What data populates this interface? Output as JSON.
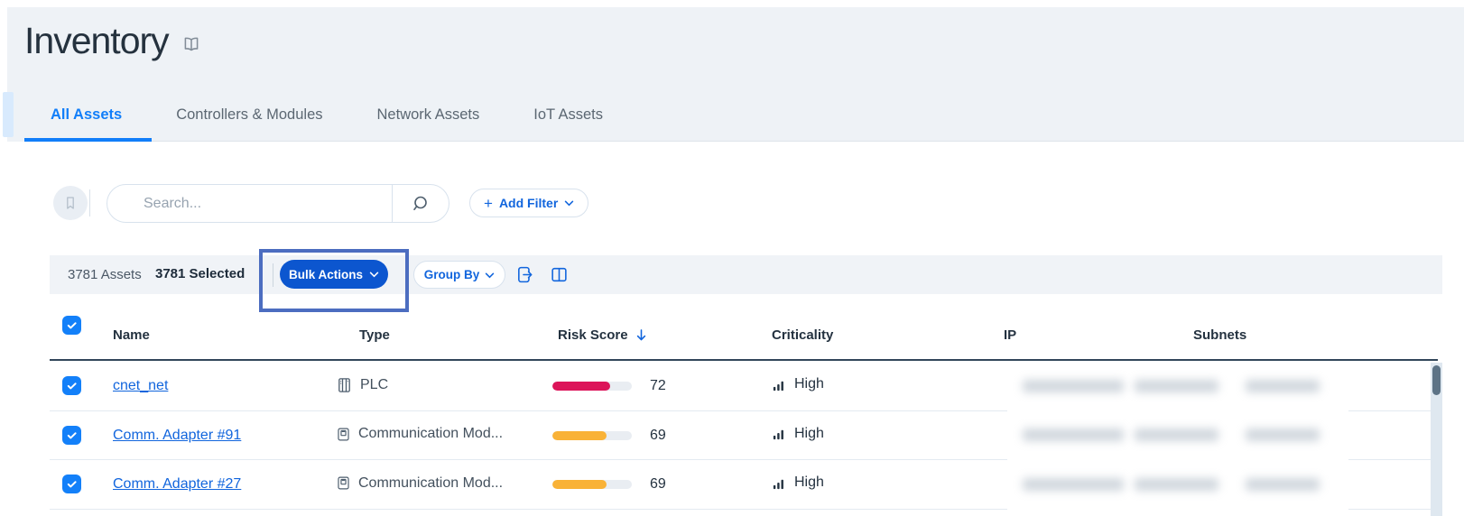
{
  "page": {
    "title": "Inventory"
  },
  "tabs": [
    {
      "label": "All Assets",
      "active": true
    },
    {
      "label": "Controllers & Modules",
      "active": false
    },
    {
      "label": "Network Assets",
      "active": false
    },
    {
      "label": "IoT Assets",
      "active": false
    }
  ],
  "search": {
    "placeholder": "Search..."
  },
  "filters": {
    "plus": "+",
    "add_filter": "Add Filter"
  },
  "toolbar": {
    "assets_count": "3781 Assets",
    "selected_count": "3781 Selected",
    "bulk_actions": "Bulk Actions",
    "group_by": "Group By"
  },
  "table": {
    "columns": {
      "name": "Name",
      "type": "Type",
      "risk_score": "Risk Score",
      "criticality": "Criticality",
      "ip": "IP",
      "subnets": "Subnets"
    },
    "rows": [
      {
        "name": "cnet_net",
        "type": "PLC",
        "type_icon": "plc-icon",
        "risk_score": "72",
        "risk_pct": 73,
        "risk_color": "#dc1459",
        "criticality": "High",
        "checked": true
      },
      {
        "name": "Comm. Adapter #91",
        "type": "Communication Mod...",
        "type_icon": "module-icon",
        "risk_score": "69",
        "risk_pct": 68,
        "risk_color": "#f9b237",
        "criticality": "High",
        "checked": true
      },
      {
        "name": "Comm. Adapter #27",
        "type": "Communication Mod...",
        "type_icon": "module-icon",
        "risk_score": "69",
        "risk_pct": 68,
        "risk_color": "#f9b237",
        "criticality": "High",
        "checked": true
      }
    ],
    "ip_subnets_redacted": true
  },
  "icons": {
    "book-icon": "open book",
    "bookmark-icon": "bookmark",
    "search-icon": "magnifier",
    "chevron-down-icon": "chevron down",
    "export-icon": "export document with arrow",
    "columns-icon": "two-column layout",
    "sort-desc-icon": "down arrow",
    "plc-icon": "controller cabinet",
    "module-icon": "communication module port",
    "criticality-bars-icon": "ascending signal bars",
    "checkbox-check-icon": "check mark"
  },
  "colors": {
    "accent_blue": "#1165dd",
    "tab_active_blue": "#117ef9",
    "bulk_button_blue": "#0c56cf",
    "annotation_box_blue": "#4c6dc0",
    "risk_red": "#dc1459",
    "risk_orange": "#f9b237",
    "checkbox_blue": "#1380f9"
  }
}
